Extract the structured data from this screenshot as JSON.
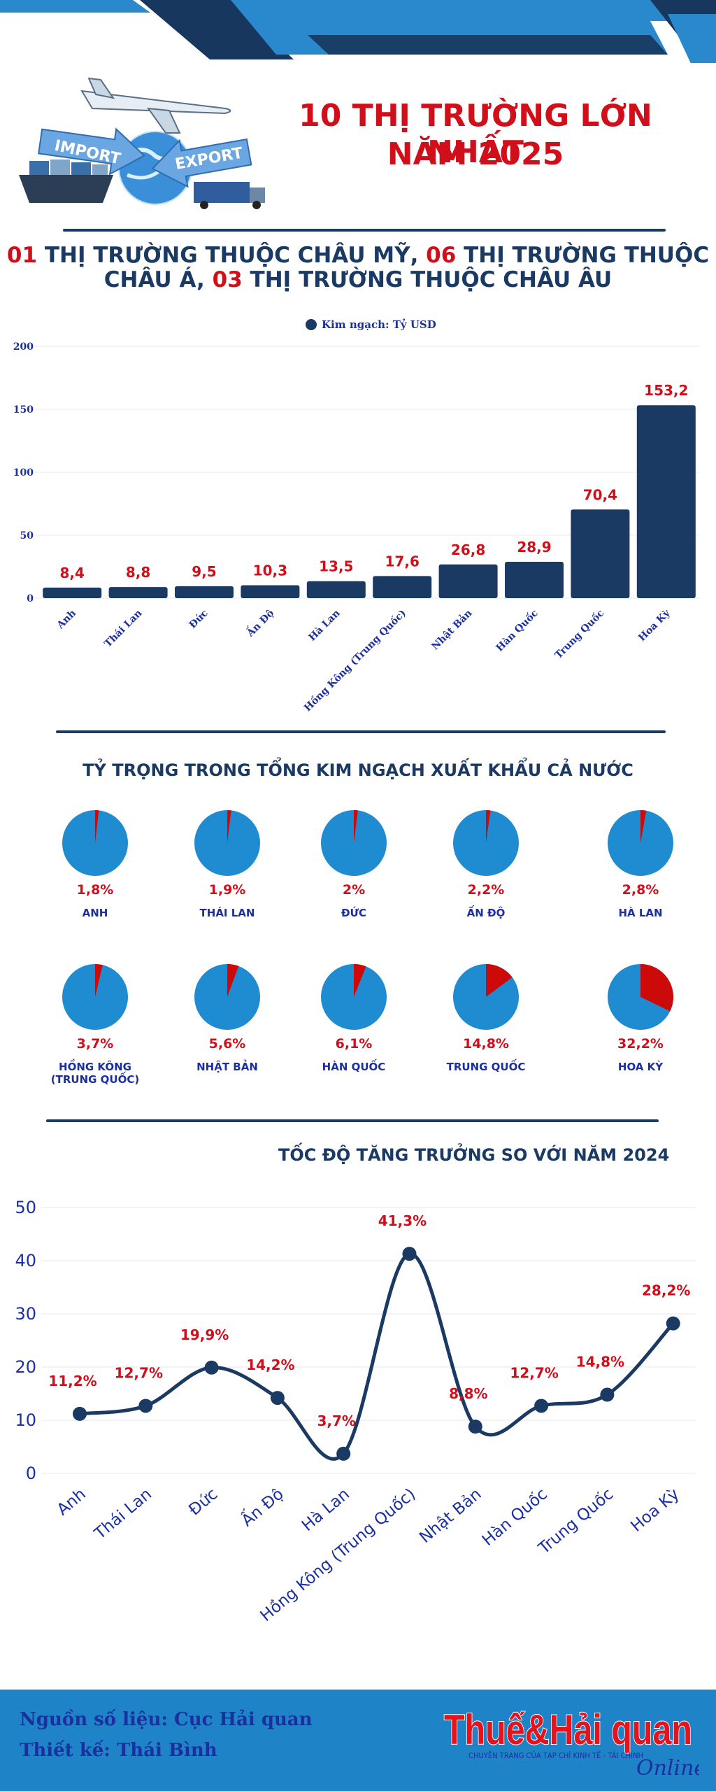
{
  "header": {
    "title_line1": "10 THỊ TRƯỜNG LỚN NHẤT",
    "title_line2": "NĂM 2025",
    "image_texts": {
      "left_arrow": "IMPORT",
      "right_arrow": "EXPORT"
    }
  },
  "subtitle": {
    "line1_num1": "01",
    "line1_text1": " THỊ TRƯỜNG THUỘC CHÂU MỸ, ",
    "line1_num2": "06",
    "line1_text2": " THỊ TRƯỜNG THUỘC",
    "line2_text1": "CHÂU Á, ",
    "line2_num": "03",
    "line2_text2": " THỊ TRƯỜNG THUỘC CHÂU ÂU"
  },
  "sections": {
    "share_title": "TỶ TRỌNG TRONG TỔNG KIM NGẠCH XUẤT KHẨU CẢ NƯỚC",
    "growth_title": "TỐC ĐỘ TĂNG TRƯỞNG SO VỚI NĂM 2024"
  },
  "colors": {
    "navy": "#1b3a63",
    "red": "#d10f1b",
    "pie_blue": "#1f8bd0",
    "label_blue": "#1b2fa0",
    "footer_blue": "#1f84c7"
  },
  "chart_data": [
    {
      "type": "bar",
      "legend": "Kim ngạch: Tỷ USD",
      "legend_position": "top-center",
      "categories": [
        "Anh",
        "Thái Lan",
        "Đức",
        "Ấn Độ",
        "Hà Lan",
        "Hồng Kông (Trung Quốc)",
        "Nhật Bản",
        "Hàn Quốc",
        "Trung Quốc",
        "Hoa Kỳ"
      ],
      "values": [
        8.4,
        8.8,
        9.5,
        10.3,
        13.5,
        17.6,
        26.8,
        28.9,
        70.4,
        153.2
      ],
      "data_labels": [
        "8,4",
        "8,8",
        "9,5",
        "10,3",
        "13,5",
        "17,6",
        "26,8",
        "28,9",
        "70,4",
        "153,2"
      ],
      "ylim": [
        0,
        200
      ],
      "yticks": [
        "0",
        "50",
        "100",
        "150",
        "200"
      ],
      "grid": true
    },
    {
      "type": "pie",
      "title": "TỶ TRỌNG TRONG TỔNG KIM NGẠCH XUẤT KHẨU CẢ NƯỚC",
      "items": [
        {
          "name": "ANH",
          "value": 1.8,
          "label": "1,8%"
        },
        {
          "name": "THÁI LAN",
          "value": 1.9,
          "label": "1,9%"
        },
        {
          "name": "ĐỨC",
          "value": 2.0,
          "label": "2%"
        },
        {
          "name": "ẤN ĐỘ",
          "value": 2.2,
          "label": "2,2%"
        },
        {
          "name": "HÀ LAN",
          "value": 2.8,
          "label": "2,8%"
        },
        {
          "name": "HỒNG KÔNG",
          "name2": "(TRUNG QUỐC)",
          "value": 3.7,
          "label": "3,7%"
        },
        {
          "name": "NHẬT BẢN",
          "value": 5.6,
          "label": "5,6%"
        },
        {
          "name": "HÀN QUỐC",
          "value": 6.1,
          "label": "6,1%"
        },
        {
          "name": "TRUNG QUỐC",
          "value": 14.8,
          "label": "14,8%"
        },
        {
          "name": "HOA KỲ",
          "value": 32.2,
          "label": "32,2%"
        }
      ]
    },
    {
      "type": "line",
      "title": "TỐC ĐỘ TĂNG TRƯỞNG SO VỚI NĂM 2024",
      "categories": [
        "Anh",
        "Thái Lan",
        "Đức",
        "Ấn Độ",
        "Hà Lan",
        "Hồng Kông (Trung Quốc)",
        "Nhật Bản",
        "Hàn Quốc",
        "Trung Quốc",
        "Hoa Kỳ"
      ],
      "values": [
        11.2,
        12.7,
        19.9,
        14.2,
        3.7,
        41.3,
        8.8,
        12.7,
        14.8,
        28.2
      ],
      "data_labels": [
        "11,2%",
        "12,7%",
        "19,9%",
        "14,2%",
        "3,7%",
        "41,3%",
        "8,8%",
        "12,7%",
        "14,8%",
        "28,2%"
      ],
      "ylim": [
        0,
        50
      ],
      "yticks": [
        "0",
        "10",
        "20",
        "30",
        "40",
        "50"
      ],
      "grid": true
    }
  ],
  "footer": {
    "source": "Nguồn số liệu: Cục Hải quan",
    "design": "Thiết kế: Thái Bình",
    "logo_text": "Thuế&Hải quan",
    "logo_online": "Online",
    "logo_tagline": "CHUYÊN TRANG CỦA TẠP CHÍ KINH TẾ - TÀI CHÍNH"
  }
}
